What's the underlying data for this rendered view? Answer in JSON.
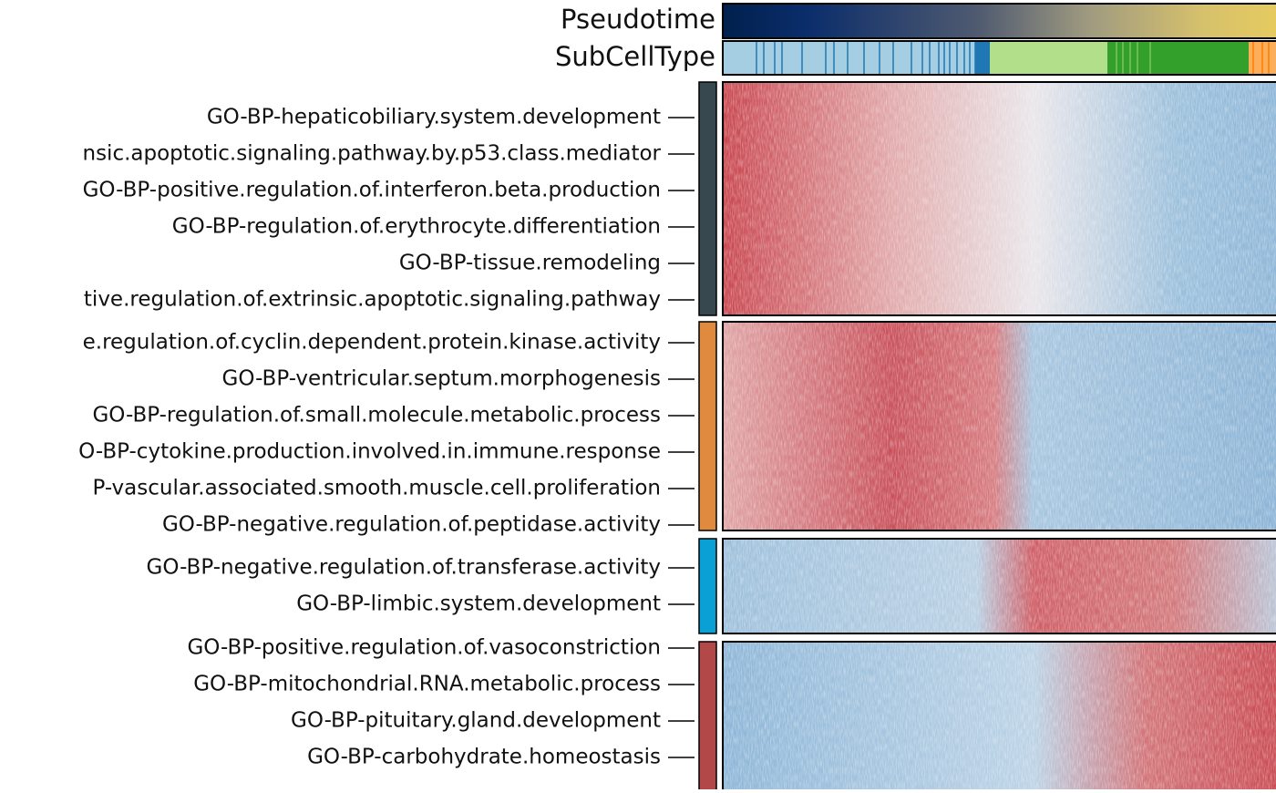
{
  "annotations": [
    "Pseudotime",
    "SubCellType"
  ],
  "clusters": [
    {
      "color": "#37494f",
      "labels": [
        "GO-BP-hepaticobiliary.system.development",
        "nsic.apoptotic.signaling.pathway.by.p53.class.mediator",
        "GO-BP-positive.regulation.of.interferon.beta.production",
        "GO-BP-regulation.of.erythrocyte.differentiation",
        "GO-BP-tissue.remodeling",
        "tive.regulation.of.extrinsic.apoptotic.signaling.pathway"
      ]
    },
    {
      "color": "#df8a3e",
      "labels": [
        "e.regulation.of.cyclin.dependent.protein.kinase.activity",
        "GO-BP-ventricular.septum.morphogenesis",
        "GO-BP-regulation.of.small.molecule.metabolic.process",
        "O-BP-cytokine.production.involved.in.immune.response",
        "P-vascular.associated.smooth.muscle.cell.proliferation",
        "GO-BP-negative.regulation.of.peptidase.activity"
      ]
    },
    {
      "color": "#0aa0d6",
      "labels": [
        "GO-BP-negative.regulation.of.transferase.activity",
        "GO-BP-limbic.system.development"
      ]
    },
    {
      "color": "#b34848",
      "labels": [
        "GO-BP-positive.regulation.of.vasoconstriction",
        "GO-BP-mitochondrial.RNA.metabolic.process",
        "GO-BP-pituitary.gland.development",
        "GO-BP-carbohydrate.homeostasis"
      ]
    }
  ]
}
